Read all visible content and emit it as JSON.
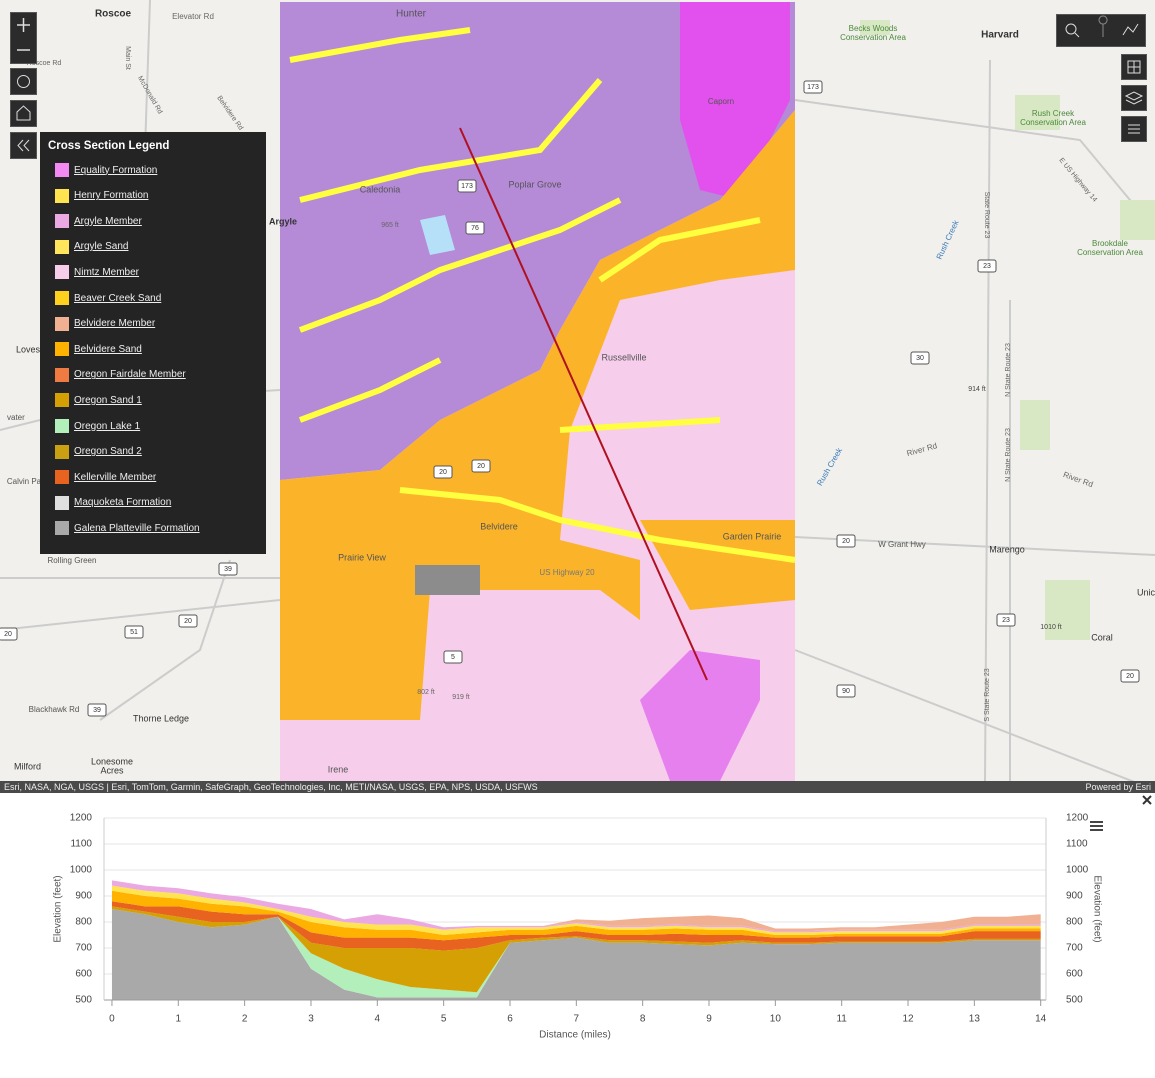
{
  "map": {
    "labels": [
      "Roscoe",
      "Elevator Rd",
      "Hunter",
      "Harvard",
      "Becks Woods",
      "Conservation Area",
      "Rush Creek",
      "Conservation Area",
      "Brookdale",
      "Conservation Area",
      "Caledonia",
      "Poplar Grove",
      "Argyle",
      "Loves Par",
      "Russellville",
      "Belvidere",
      "Garden Prairie",
      "Prairie View",
      "Marengo",
      "Coral",
      "Rolling Green",
      "Blackhawk Rd",
      "Thorne Ledge",
      "Lonesome",
      "Acres",
      "Milford",
      "Irene",
      "Unic",
      "Calvin Pa",
      "vater",
      "W Grant Hwy",
      "River Rd",
      "River Rd",
      "Rush Creek",
      "Rush Creek",
      "US Highway 20",
      "Caporn",
      "Roscoe Rd",
      "Main St",
      "McDonald Rd",
      "Belvidere Rd",
      "E US Highway 14",
      "State Route 23",
      "N State Route 23",
      "N State Route 23",
      "S State Route 23",
      "965 ft",
      "914 ft",
      "1010 ft",
      "802 ft",
      "919 ft",
      "173",
      "23",
      "30",
      "20",
      "23",
      "90",
      "20",
      "39",
      "51",
      "20",
      "20",
      "39",
      "76",
      "173",
      "20",
      "20",
      "5"
    ],
    "attribution": "Esri, NASA, NGA, USGS | Esri, TomTom, Garmin, SafeGraph, GeoTechnologies, Inc, METI/NASA, USGS, EPA, NPS, USDA, USFWS",
    "powered": "Powered by Esri"
  },
  "legend": {
    "title": "Cross Section Legend",
    "items": [
      {
        "label": "Equality Formation",
        "color": "#f38af3"
      },
      {
        "label": "Henry Formation",
        "color": "#ffe34f"
      },
      {
        "label": "Argyle Member",
        "color": "#eaa9e2"
      },
      {
        "label": "Argyle Sand",
        "color": "#ffe55c"
      },
      {
        "label": "Nimtz Member",
        "color": "#f6cdea"
      },
      {
        "label": "Beaver Creek Sand",
        "color": "#ffd11f"
      },
      {
        "label": "Belvidere Member",
        "color": "#f0b091"
      },
      {
        "label": "Belvidere Sand",
        "color": "#ffb300"
      },
      {
        "label": "Oregon Fairdale Member",
        "color": "#ef7a42"
      },
      {
        "label": "Oregon Sand 1",
        "color": "#d5a004"
      },
      {
        "label": "Oregon Lake 1",
        "color": "#b2efba"
      },
      {
        "label": "Oregon Sand 2",
        "color": "#c9a012"
      },
      {
        "label": "Kellerville Member",
        "color": "#e8631f"
      },
      {
        "label": "Maquoketa Formation",
        "color": "#dfdfdf"
      },
      {
        "label": "Galena Platteville Formation",
        "color": "#a9a9a9"
      }
    ]
  },
  "chart_data": {
    "type": "area",
    "stacked": true,
    "ylabel": "Elevation (feet)",
    "y2label": "Elevation (feet)",
    "xlabel": "Distance (miles)",
    "x": [
      0,
      0.5,
      1,
      1.5,
      2,
      2.5,
      3,
      3.5,
      4,
      4.5,
      5,
      5.5,
      6,
      6.5,
      7,
      7.5,
      8,
      8.5,
      9,
      9.5,
      10,
      10.5,
      11,
      11.5,
      12,
      12.5,
      13,
      13.5,
      14
    ],
    "xlim": [
      -0.12,
      14.08
    ],
    "xticks": [
      0,
      1,
      2,
      3,
      4,
      5,
      6,
      7,
      8,
      9,
      10,
      11,
      12,
      13,
      14
    ],
    "ylim": [
      500,
      1200
    ],
    "yticks": [
      500,
      600,
      700,
      800,
      900,
      1000,
      1100,
      1200
    ],
    "y2lim": [
      500,
      1200
    ],
    "y2ticks": [
      500,
      600,
      700,
      800,
      900,
      1000,
      1100,
      1200
    ],
    "grid": true,
    "series": [
      {
        "color": "#a9a9a9",
        "values": [
          350,
          330,
          300,
          280,
          290,
          320,
          120,
          40,
          10,
          10,
          10,
          10,
          220,
          230,
          240,
          220,
          220,
          215,
          210,
          220,
          215,
          215,
          220,
          220,
          220,
          220,
          230,
          230,
          230
        ]
      },
      {
        "color": "#b2efba",
        "values": [
          0,
          0,
          0,
          0,
          0,
          0,
          60,
          80,
          70,
          40,
          30,
          20,
          0,
          0,
          0,
          0,
          0,
          0,
          0,
          0,
          0,
          0,
          0,
          0,
          0,
          0,
          0,
          0,
          0
        ]
      },
      {
        "color": "#d5a004",
        "values": [
          10,
          10,
          20,
          20,
          10,
          0,
          40,
          80,
          120,
          150,
          150,
          170,
          10,
          10,
          5,
          10,
          10,
          10,
          10,
          10,
          5,
          5,
          5,
          5,
          5,
          5,
          5,
          5,
          5
        ]
      },
      {
        "color": "#e8631f",
        "values": [
          20,
          20,
          40,
          40,
          30,
          10,
          40,
          40,
          40,
          40,
          40,
          40,
          20,
          10,
          20,
          20,
          20,
          30,
          30,
          20,
          20,
          20,
          20,
          20,
          20,
          20,
          30,
          30,
          30
        ]
      },
      {
        "color": "#ffb300",
        "values": [
          40,
          40,
          30,
          30,
          30,
          10,
          40,
          40,
          30,
          30,
          20,
          20,
          20,
          20,
          20,
          20,
          20,
          20,
          20,
          20,
          10,
          10,
          10,
          10,
          10,
          10,
          10,
          10,
          10
        ]
      },
      {
        "color": "#ffe34f",
        "values": [
          20,
          20,
          20,
          20,
          15,
          10,
          20,
          20,
          20,
          20,
          20,
          20,
          10,
          10,
          10,
          10,
          10,
          10,
          10,
          10,
          10,
          10,
          10,
          10,
          10,
          10,
          10,
          10,
          10
        ]
      },
      {
        "color": "#eaa9e2",
        "values": [
          20,
          20,
          20,
          20,
          20,
          20,
          30,
          10,
          40,
          20,
          10,
          5,
          5,
          5,
          5,
          5,
          5,
          5,
          5,
          5,
          5,
          5,
          5,
          5,
          5,
          5,
          5,
          5,
          5
        ]
      },
      {
        "color": "#f0b091",
        "values": [
          0,
          0,
          0,
          0,
          0,
          0,
          0,
          0,
          0,
          0,
          0,
          0,
          0,
          0,
          10,
          20,
          30,
          30,
          40,
          30,
          10,
          10,
          10,
          10,
          20,
          30,
          30,
          30,
          40
        ]
      }
    ]
  }
}
